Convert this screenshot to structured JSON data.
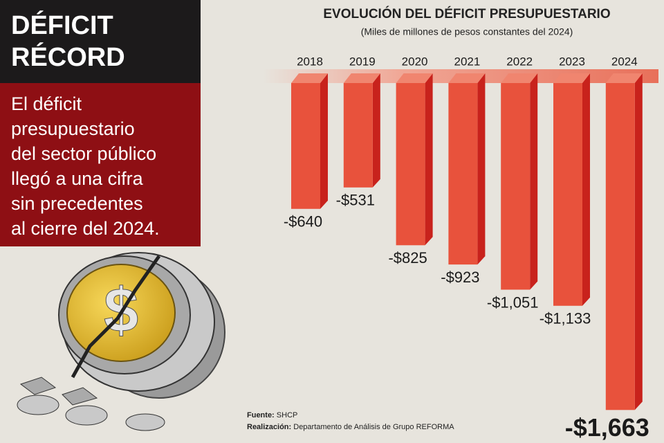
{
  "header": {
    "headline": [
      "DÉFICIT",
      "RÉCORD"
    ],
    "body": [
      "El déficit",
      "presupuestario",
      "del sector público",
      "llegó a una cifra",
      "sin precedentes",
      "al cierre del 2024."
    ]
  },
  "chart_data": {
    "type": "bar",
    "title": "EVOLUCIÓN DEL DÉFICIT PRESUPUESTARIO",
    "subtitle": "(Miles de millones de pesos constantes del 2024)",
    "categories": [
      "2018",
      "2019",
      "2020",
      "2021",
      "2022",
      "2023",
      "2024"
    ],
    "values": [
      -640,
      -531,
      -825,
      -923,
      -1051,
      -1133,
      -1663
    ],
    "value_labels": [
      "-$640",
      "-$531",
      "-$825",
      "-$923",
      "-$1,051",
      "-$1,133",
      "-$1,663"
    ],
    "color": "#e8523c"
  },
  "notes": {
    "source_label": "Fuente:",
    "source": "SHCP",
    "credit_label": "Realización:",
    "credit": "Departamento de Análisis de Grupo REFORMA"
  }
}
